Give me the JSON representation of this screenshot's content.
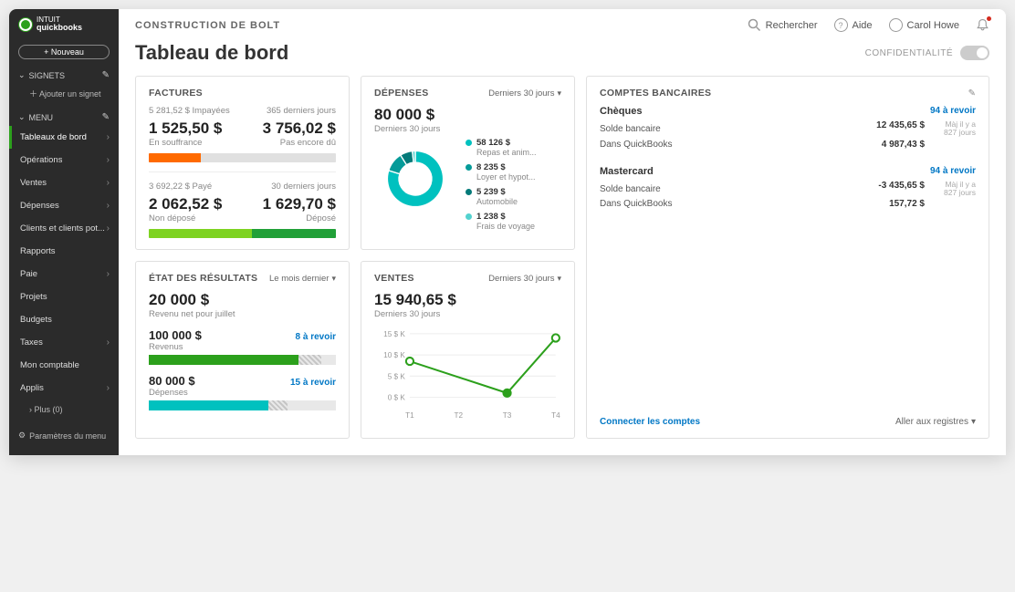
{
  "colors": {
    "sidebar_bg": "#2b2b2b",
    "accent_green": "#2ca01c",
    "link_blue": "#0077c5",
    "orange": "#ff6a00",
    "light_green": "#7ed321",
    "dark_green": "#21a038",
    "teal": "#00c1bf",
    "teal_dark": "#059b99",
    "teal_darker": "#047a79",
    "teal_light": "#53d2cf"
  },
  "brand": {
    "top": "INTUIT",
    "name": "quickbooks"
  },
  "sidebar": {
    "new_label": "+ Nouveau",
    "bookmarks_label": "SIGNETS",
    "add_bookmark": "Ajouter un signet",
    "menu_label": "MENU",
    "items": [
      {
        "label": "Tableaux de bord",
        "active": true,
        "chevron": true
      },
      {
        "label": "Opérations",
        "chevron": true
      },
      {
        "label": "Ventes",
        "chevron": true
      },
      {
        "label": "Dépenses",
        "chevron": true
      },
      {
        "label": "Clients et clients pot...",
        "chevron": true
      },
      {
        "label": "Rapports",
        "chevron": false
      },
      {
        "label": "Paie",
        "chevron": true
      },
      {
        "label": "Projets",
        "chevron": false
      },
      {
        "label": "Budgets",
        "chevron": false
      },
      {
        "label": "Taxes",
        "chevron": true
      },
      {
        "label": "Mon comptable",
        "chevron": false
      },
      {
        "label": "Applis",
        "chevron": true
      }
    ],
    "more": "Plus (0)",
    "settings": "Paramètres du menu"
  },
  "topbar": {
    "company": "CONSTRUCTION DE BOLT",
    "search": "Rechercher",
    "help": "Aide",
    "user": "Carol Howe"
  },
  "title": "Tableau de bord",
  "privacy": "CONFIDENTIALITÉ",
  "invoices": {
    "title": "FACTURES",
    "unpaid_amt": "5 281,52 $ Impayées",
    "unpaid_period": "365 derniers jours",
    "overdue_amt": "1 525,50 $",
    "overdue_lbl": "En souffrance",
    "notdue_amt": "3 756,02 $",
    "notdue_lbl": "Pas encore dû",
    "bar1": {
      "orange_pct": 28,
      "grey_pct": 72
    },
    "paid_amt": "3 692,22 $ Payé",
    "paid_period": "30 derniers jours",
    "undep_amt": "2 062,52 $",
    "undep_lbl": "Non déposé",
    "dep_amt": "1 629,70 $",
    "dep_lbl": "Déposé",
    "bar2": {
      "light_pct": 55,
      "dark_pct": 45
    }
  },
  "expenses": {
    "title": "DÉPENSES",
    "period": "Derniers 30 jours",
    "total": "80 000 $",
    "sub": "Derniers 30 jours",
    "donut": {
      "segments": [
        {
          "value": 58126,
          "color": "#00c1bf"
        },
        {
          "value": 8235,
          "color": "#059b99"
        },
        {
          "value": 5239,
          "color": "#047a79"
        },
        {
          "value": 1238,
          "color": "#53d2cf"
        }
      ]
    },
    "legend": [
      {
        "amt": "58 126 $",
        "lbl": "Repas et anim...",
        "color": "#00c1bf"
      },
      {
        "amt": "8 235 $",
        "lbl": "Loyer et hypot...",
        "color": "#059b99"
      },
      {
        "amt": "5 239 $",
        "lbl": "Automobile",
        "color": "#047a79"
      },
      {
        "amt": "1 238 $",
        "lbl": "Frais de voyage",
        "color": "#53d2cf"
      }
    ]
  },
  "bank": {
    "title": "COMPTES BANCAIRES",
    "accounts": [
      {
        "name": "Chèques",
        "review": "94 à revoir",
        "rows": [
          {
            "lbl": "Solde bancaire",
            "val": "12 435,65 $",
            "date": "Màj il y a 827 jours"
          },
          {
            "lbl": "Dans QuickBooks",
            "val": "4 987,43 $",
            "date": ""
          }
        ]
      },
      {
        "name": "Mastercard",
        "review": "94 à revoir",
        "rows": [
          {
            "lbl": "Solde bancaire",
            "val": "-3 435,65 $",
            "date": "Màj il y a 827 jours"
          },
          {
            "lbl": "Dans QuickBooks",
            "val": "157,72 $",
            "date": ""
          }
        ]
      }
    ],
    "connect": "Connecter les comptes",
    "go": "Aller aux registres"
  },
  "results": {
    "title": "ÉTAT DES RÉSULTATS",
    "period": "Le mois dernier",
    "net": "20 000 $",
    "net_lbl": "Revenu net pour juillet",
    "bars": [
      {
        "amt": "100 000 $",
        "lbl": "Revenus",
        "link": "8 à revoir",
        "fill_pct": 80,
        "hatch_pct": 12,
        "color": "#2ca01c"
      },
      {
        "amt": "80 000 $",
        "lbl": "Dépenses",
        "link": "15 à revoir",
        "fill_pct": 64,
        "hatch_pct": 10,
        "color": "#00c1bf"
      }
    ]
  },
  "sales": {
    "title": "VENTES",
    "period": "Derniers 30 jours",
    "total": "15 940,65 $",
    "sub": "Derniers 30 jours",
    "chart": {
      "type": "line",
      "color": "#2ca01c",
      "y_ticks": [
        "15 $ K",
        "10 $ K",
        "5 $ K",
        "0 $ K"
      ],
      "x_ticks": [
        "T1",
        "T2",
        "T3",
        "T4"
      ],
      "points": [
        {
          "x": 0,
          "y": 8.5,
          "filled": false
        },
        {
          "x": 2,
          "y": 1.0,
          "filled": true
        },
        {
          "x": 3,
          "y": 14.0,
          "filled": false
        }
      ],
      "ylim": [
        0,
        15
      ]
    }
  }
}
